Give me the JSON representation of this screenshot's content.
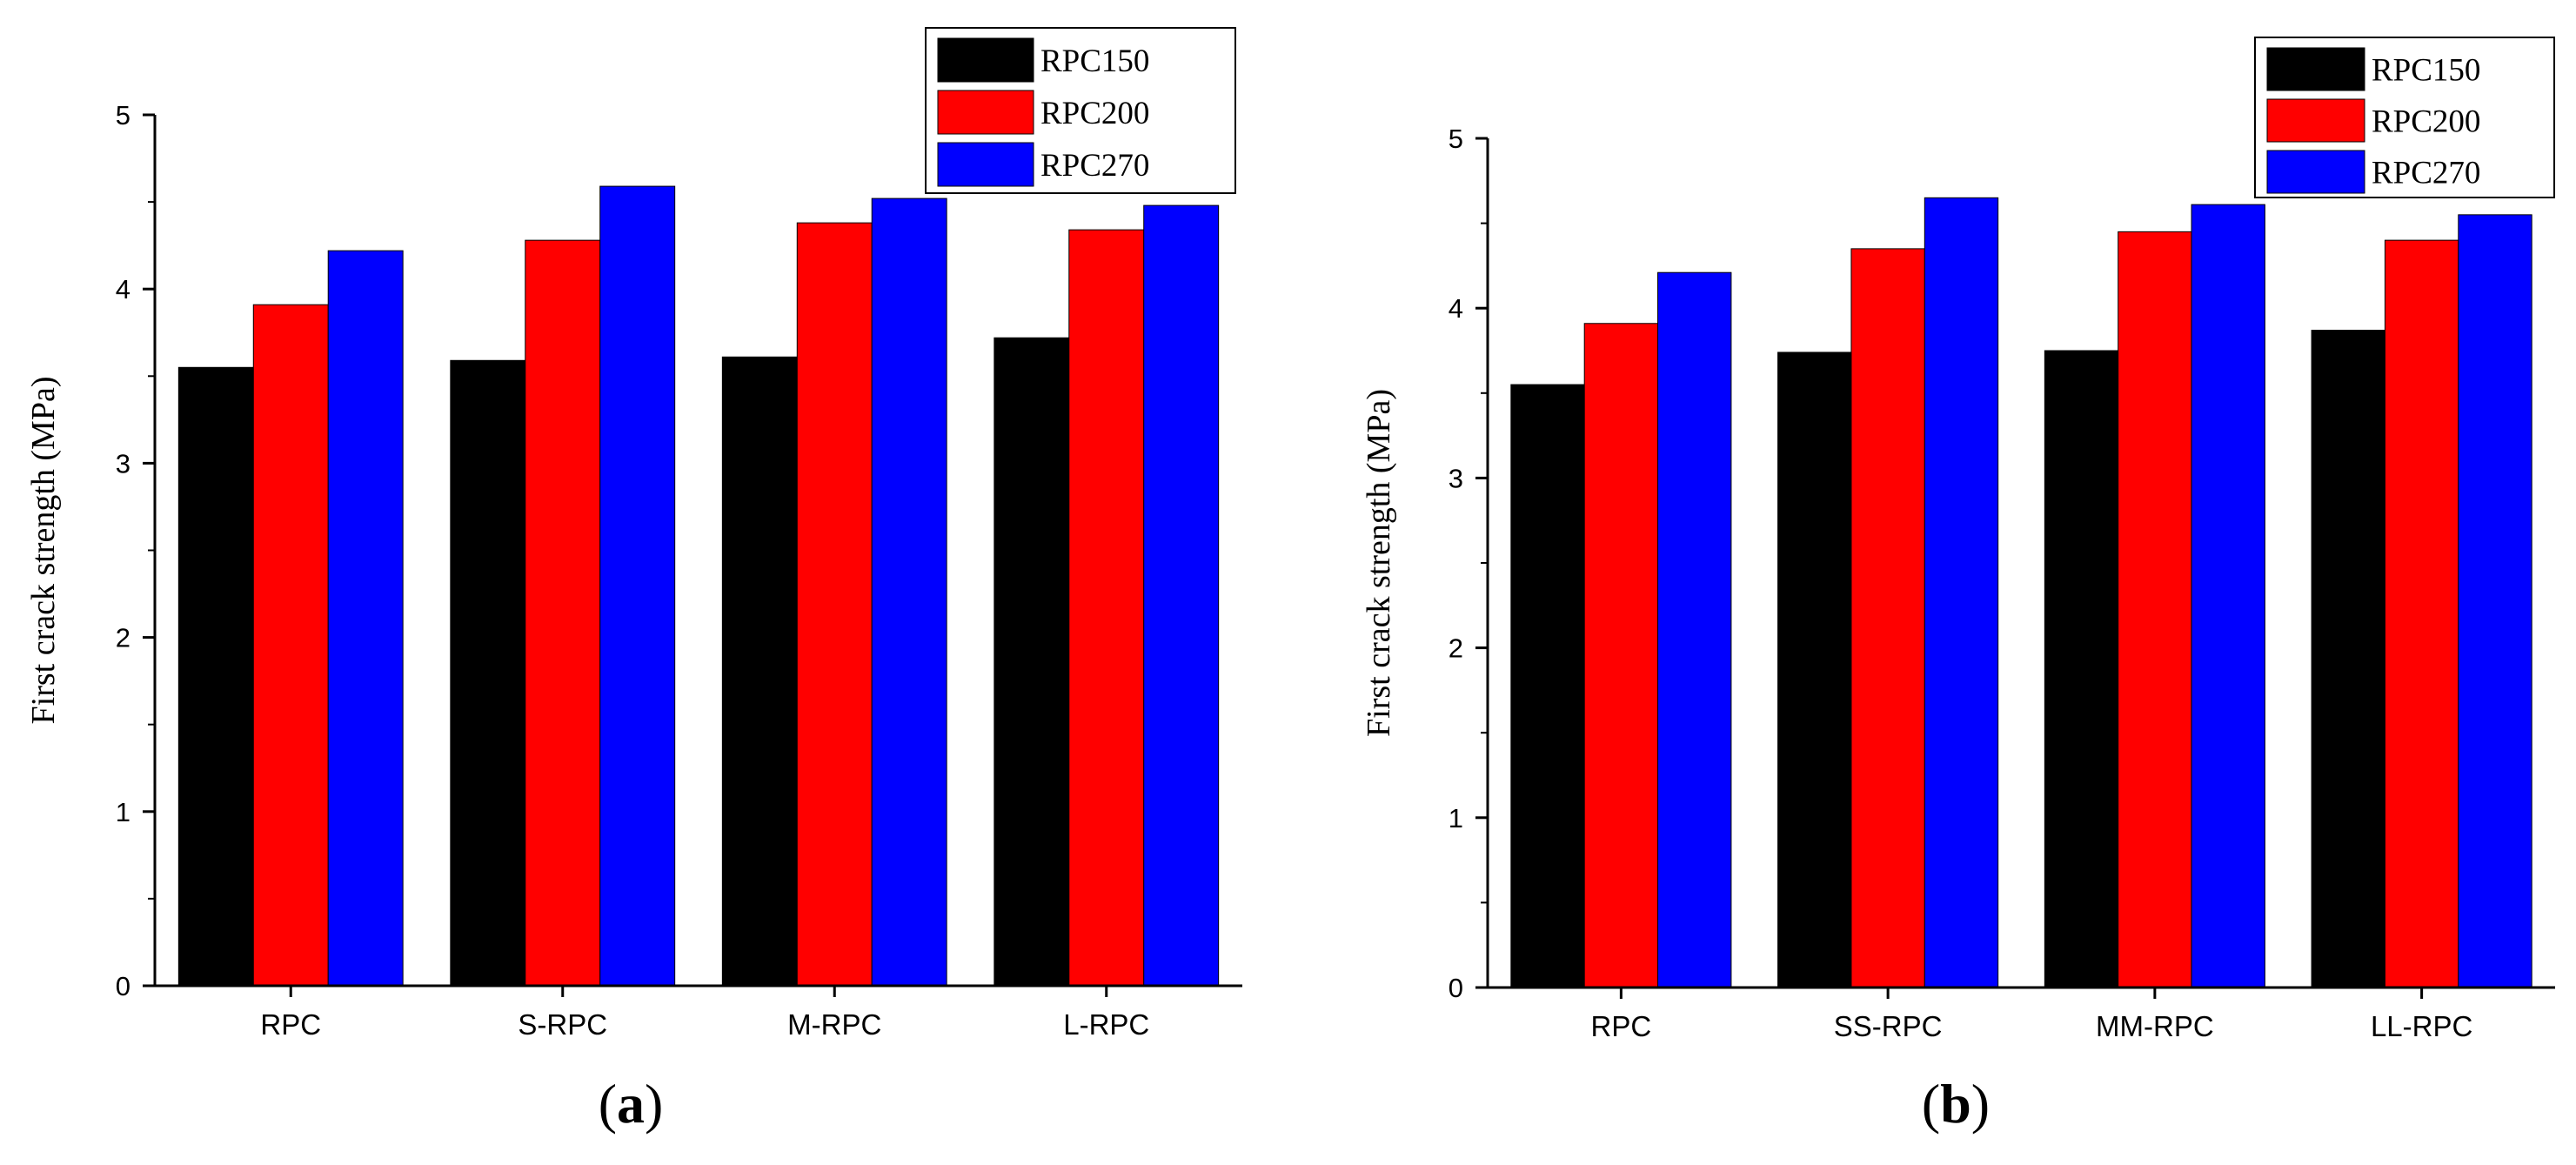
{
  "chart_data": [
    {
      "type": "bar",
      "panel": "a",
      "panel_label_open": "(",
      "panel_label_letter": "a",
      "panel_label_close": ")",
      "categories": [
        "RPC",
        "S-RPC",
        "M-RPC",
        "L-RPC"
      ],
      "series": [
        {
          "name": "RPC150",
          "color": "#000000",
          "values": [
            3.55,
            3.59,
            3.61,
            3.72
          ]
        },
        {
          "name": "RPC200",
          "color": "#ff0000",
          "values": [
            3.91,
            4.28,
            4.38,
            4.34
          ]
        },
        {
          "name": "RPC270",
          "color": "#0000ff",
          "values": [
            4.22,
            4.59,
            4.52,
            4.48
          ]
        }
      ],
      "ylabel": "First crack strength (MPa)",
      "xlabel": "",
      "ylim": [
        0,
        5
      ],
      "yticks": [
        "0",
        "1",
        "2",
        "3",
        "4",
        "5"
      ],
      "legend_position": "top-right",
      "grid": false
    },
    {
      "type": "bar",
      "panel": "b",
      "panel_label_open": "(",
      "panel_label_letter": "b",
      "panel_label_close": ")",
      "categories": [
        "RPC",
        "SS-RPC",
        "MM-RPC",
        "LL-RPC"
      ],
      "series": [
        {
          "name": "RPC150",
          "color": "#000000",
          "values": [
            3.55,
            3.74,
            3.75,
            3.87
          ]
        },
        {
          "name": "RPC200",
          "color": "#ff0000",
          "values": [
            3.91,
            4.35,
            4.45,
            4.4
          ]
        },
        {
          "name": "RPC270",
          "color": "#0000ff",
          "values": [
            4.21,
            4.65,
            4.61,
            4.55
          ]
        }
      ],
      "ylabel": "First crack strength (MPa)",
      "xlabel": "",
      "ylim": [
        0,
        5
      ],
      "yticks": [
        "0",
        "1",
        "2",
        "3",
        "4",
        "5"
      ],
      "legend_position": "top-right",
      "grid": false
    }
  ]
}
